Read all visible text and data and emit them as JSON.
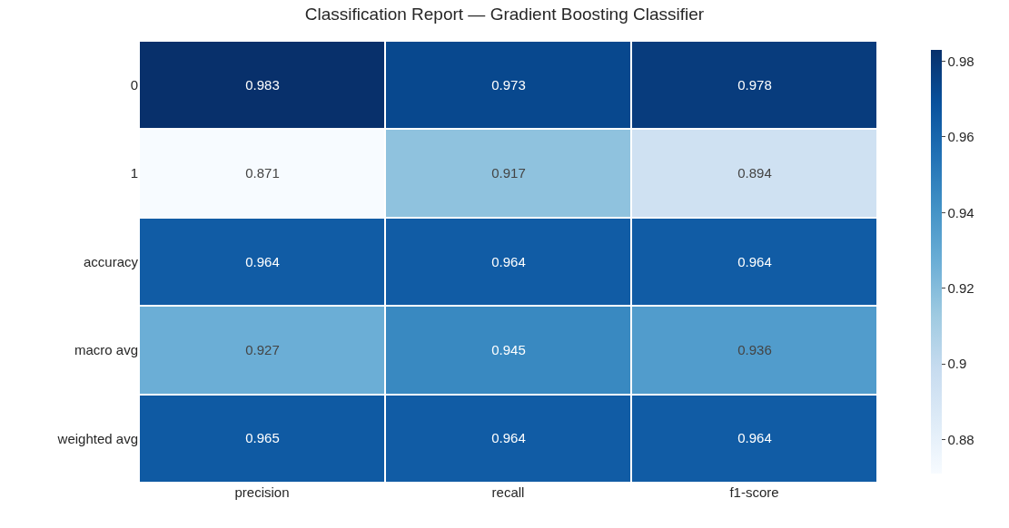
{
  "chart_data": {
    "type": "heatmap",
    "title": "Classification Report — Gradient Boosting Classifier",
    "categories": [
      "precision",
      "recall",
      "f1-score"
    ],
    "y_categories": [
      "0",
      "1",
      "accuracy",
      "macro avg",
      "weighted avg"
    ],
    "cells": [
      [
        0.983,
        0.973,
        0.978
      ],
      [
        0.871,
        0.917,
        0.894
      ],
      [
        0.964,
        0.964,
        0.964
      ],
      [
        0.927,
        0.945,
        0.936
      ],
      [
        0.965,
        0.964,
        0.964
      ]
    ],
    "clim": [
      0.871,
      0.983
    ],
    "cticks": [
      0.88,
      0.9,
      0.92,
      0.94,
      0.96,
      0.98
    ],
    "data_labels": true
  }
}
